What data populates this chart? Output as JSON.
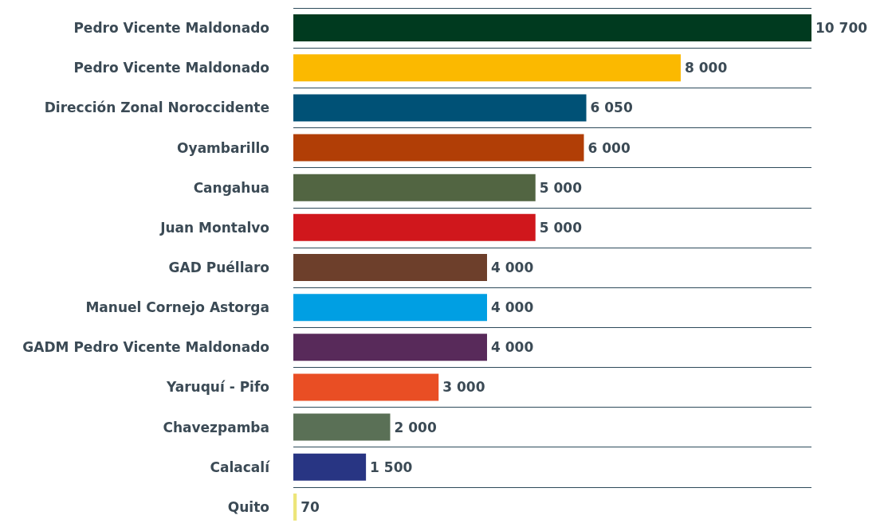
{
  "chart_data": {
    "type": "bar",
    "orientation": "horizontal",
    "grid": "y",
    "categories": [
      "Pedro Vicente Maldonado",
      "Pedro Vicente Maldonado",
      "Dirección Zonal Noroccidente",
      "Oyambarillo",
      "Cangahua",
      "Juan Montalvo",
      "GAD Puéllaro",
      "Manuel Cornejo Astorga",
      "GADM Pedro Vicente Maldonado",
      "Yaruquí - Pifo",
      "Chavezpamba",
      "Calacalí",
      "Quito"
    ],
    "values": [
      10700,
      8000,
      6050,
      6000,
      5000,
      5000,
      4000,
      4000,
      4000,
      3000,
      2000,
      1500,
      70
    ],
    "value_labels": [
      "10 700",
      "8 000",
      "6 050",
      "6 000",
      "5 000",
      "5 000",
      "4 000",
      "4 000",
      "4 000",
      "3 000",
      "2 000",
      "1 500",
      "70"
    ],
    "colors": [
      "#003a1f",
      "#fbb900",
      "#005176",
      "#b13e06",
      "#526542",
      "#d0171c",
      "#6d3f2b",
      "#009fe3",
      "#582a5a",
      "#e94e24",
      "#5a7056",
      "#283583",
      "#ede57a"
    ]
  }
}
